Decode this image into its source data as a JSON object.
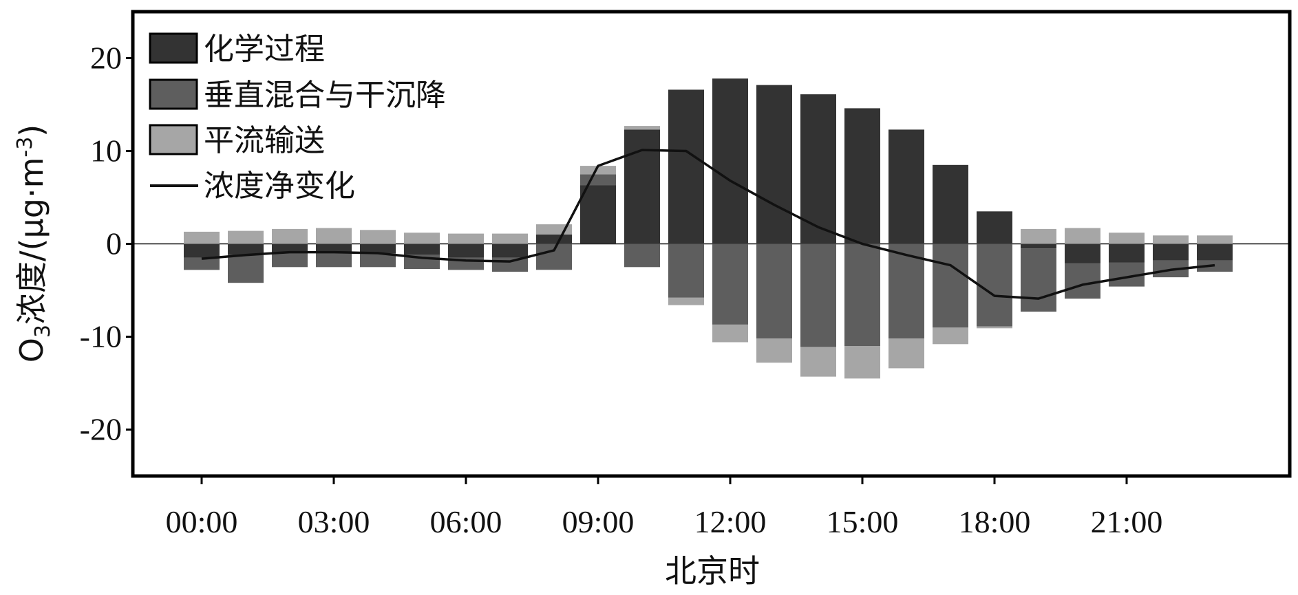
{
  "chart_data": {
    "type": "bar",
    "stacked": true,
    "xlabel": "北京时",
    "ylabel": "O3浓度/(μg·m-3)",
    "ylabel_parts": {
      "o": "O",
      "sub": "3",
      "mid": "浓度/(μg·m",
      "sup": "-3",
      "close": ")"
    },
    "ylim": [
      -25,
      25
    ],
    "yticks": [
      20,
      10,
      0,
      -10,
      -20
    ],
    "ytick_labels": [
      "20",
      "10",
      "0",
      "-10",
      "-20"
    ],
    "xtick_labels": [
      "00:00",
      "03:00",
      "06:00",
      "09:00",
      "12:00",
      "15:00",
      "18:00",
      "21:00"
    ],
    "xtick_hours": [
      0,
      3,
      6,
      9,
      12,
      15,
      18,
      21
    ],
    "hours": [
      0,
      1,
      2,
      3,
      4,
      5,
      6,
      7,
      8,
      9,
      10,
      11,
      12,
      13,
      14,
      15,
      16,
      17,
      18,
      19,
      20,
      21,
      22,
      23
    ],
    "legend_position": "top-left",
    "series": [
      {
        "name": "化学过程",
        "color": "#333333",
        "values": [
          -1.5,
          -1.2,
          -1.0,
          -1.0,
          -1.0,
          -1.2,
          -1.5,
          -1.5,
          1.0,
          6.3,
          12.3,
          16.6,
          17.8,
          17.1,
          16.1,
          14.6,
          12.3,
          8.5,
          3.5,
          -0.5,
          -2.1,
          -2.0,
          -1.8,
          -1.8
        ]
      },
      {
        "name": "垂直混合与干沉降",
        "color": "#5e5e5e",
        "values": [
          -1.3,
          -3.0,
          -1.5,
          -1.5,
          -1.5,
          -1.5,
          -1.3,
          -1.5,
          -2.8,
          1.2,
          -2.5,
          -5.8,
          -8.7,
          -10.2,
          -11.1,
          -11.0,
          -10.2,
          -9.0,
          -8.9,
          -6.8,
          -3.8,
          -2.6,
          -1.8,
          -1.2
        ]
      },
      {
        "name": "平流输送",
        "color": "#a6a6a6",
        "values": [
          1.3,
          1.4,
          1.6,
          1.7,
          1.5,
          1.2,
          1.1,
          1.1,
          1.1,
          0.9,
          0.4,
          -0.8,
          -1.9,
          -2.6,
          -3.2,
          -3.5,
          -3.2,
          -1.8,
          -0.2,
          1.6,
          1.7,
          1.2,
          0.9,
          0.9
        ]
      }
    ],
    "line": {
      "name": "浓度净变化",
      "color": "#111111",
      "values": [
        -1.6,
        -1.2,
        -0.9,
        -0.9,
        -1.0,
        -1.5,
        -1.8,
        -1.9,
        -0.7,
        8.4,
        10.1,
        10.0,
        6.8,
        4.2,
        1.8,
        0.0,
        -1.2,
        -2.3,
        -5.6,
        -5.9,
        -4.4,
        -3.6,
        -2.8,
        -2.3
      ]
    }
  }
}
